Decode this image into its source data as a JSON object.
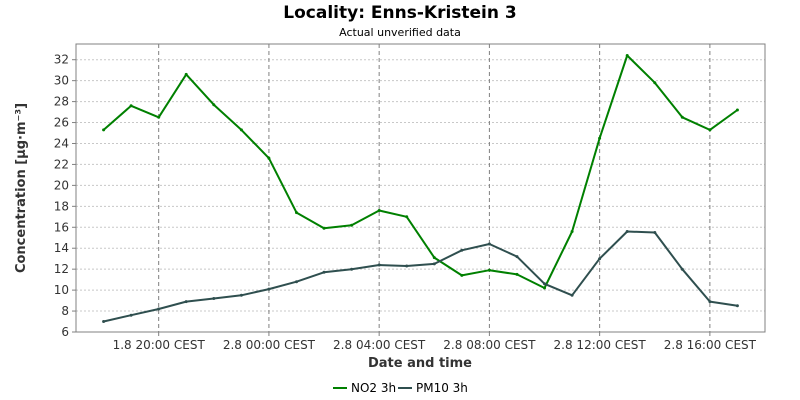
{
  "chart_data": {
    "type": "line",
    "title": "Locality: Enns-Kristein 3",
    "subtitle": "Actual unverified data",
    "xlabel": "Date and time",
    "ylabel": "Concentration [µg·m⁻³]",
    "ylim": [
      6,
      33.5
    ],
    "yticks": [
      6,
      8,
      10,
      12,
      14,
      16,
      18,
      20,
      22,
      24,
      26,
      28,
      30,
      32
    ],
    "xlim": [
      "2024-08-01T17:00",
      "2024-08-02T18:00"
    ],
    "xticks": [
      {
        "label": "1.8 20:00 CEST",
        "t": "2024-08-01T20:00"
      },
      {
        "label": "2.8 00:00 CEST",
        "t": "2024-08-02T00:00"
      },
      {
        "label": "2.8 04:00 CEST",
        "t": "2024-08-02T04:00"
      },
      {
        "label": "2.8 08:00 CEST",
        "t": "2024-08-02T08:00"
      },
      {
        "label": "2.8 12:00 CEST",
        "t": "2024-08-02T12:00"
      },
      {
        "label": "2.8 16:00 CEST",
        "t": "2024-08-02T16:00"
      }
    ],
    "x": [
      "2024-08-01T18:00",
      "2024-08-01T19:00",
      "2024-08-01T20:00",
      "2024-08-01T21:00",
      "2024-08-01T22:00",
      "2024-08-01T23:00",
      "2024-08-02T00:00",
      "2024-08-02T01:00",
      "2024-08-02T02:00",
      "2024-08-02T03:00",
      "2024-08-02T04:00",
      "2024-08-02T05:00",
      "2024-08-02T06:00",
      "2024-08-02T07:00",
      "2024-08-02T08:00",
      "2024-08-02T09:00",
      "2024-08-02T10:00",
      "2024-08-02T11:00",
      "2024-08-02T12:00",
      "2024-08-02T13:00",
      "2024-08-02T14:00",
      "2024-08-02T15:00",
      "2024-08-02T16:00",
      "2024-08-02T17:00"
    ],
    "series": [
      {
        "name": "NO2 3h",
        "color": "#008000",
        "values": [
          25.3,
          27.6,
          26.5,
          30.6,
          27.7,
          25.3,
          22.6,
          17.4,
          15.9,
          16.2,
          17.6,
          17.0,
          13.1,
          11.4,
          11.9,
          11.5,
          10.2,
          15.6,
          24.5,
          32.4,
          29.8,
          26.5,
          25.3,
          27.2
        ]
      },
      {
        "name": "PM10 3h",
        "color": "#2f4f4f",
        "values": [
          7.0,
          7.6,
          8.2,
          8.9,
          9.2,
          9.5,
          10.1,
          10.8,
          11.7,
          12.0,
          12.4,
          12.3,
          12.5,
          13.8,
          14.4,
          13.2,
          10.6,
          9.5,
          13.0,
          15.6,
          15.5,
          12.0,
          8.9,
          8.5
        ]
      }
    ],
    "legend_position": "bottom-center",
    "grid": true
  }
}
